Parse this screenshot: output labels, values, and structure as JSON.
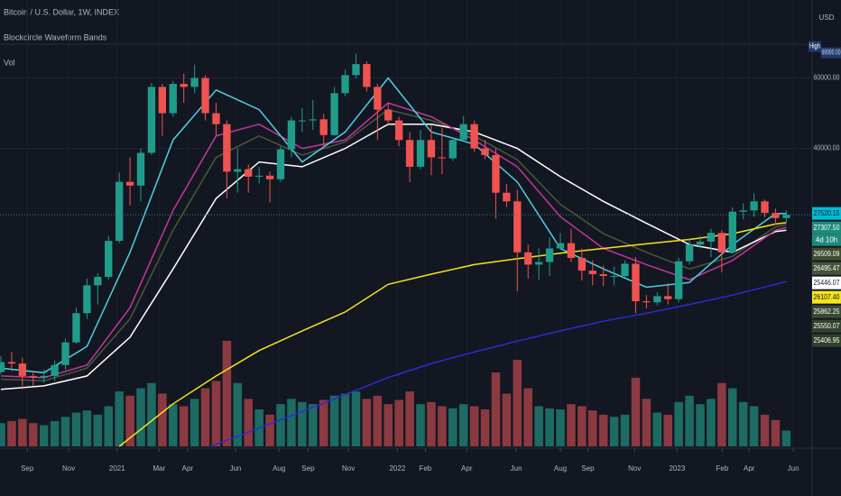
{
  "chart_data": {
    "type": "candlestick",
    "title": "Bitcoin / U.S. Dollar, 1W, INDEX",
    "subtitle": "Blockcircle Waveform Bands",
    "volume_title": "Vol",
    "currency": "USD",
    "up_color": "#1f9d8a",
    "down_color": "#ef5350",
    "volume_up_color": "#1d6b63",
    "volume_down_color": "#8a3a40",
    "log_scale": true,
    "xlim": [
      -0.17,
      150.8
    ],
    "ylim": [
      7200,
      94000
    ],
    "vlim": [
      0,
      105
    ],
    "yticks": [
      {
        "value": 60000,
        "label": "60000.00"
      },
      {
        "value": 40000,
        "label": "40000.00"
      }
    ],
    "xticks": [
      {
        "value": 4.9,
        "label": "Sep"
      },
      {
        "value": 12.6,
        "label": "Nov"
      },
      {
        "value": 21.6,
        "label": "2021"
      },
      {
        "value": 29.4,
        "label": "Mar"
      },
      {
        "value": 34.7,
        "label": "Apr"
      },
      {
        "value": 43.6,
        "label": "Jun"
      },
      {
        "value": 51.7,
        "label": "Aug"
      },
      {
        "value": 57.1,
        "label": "Sep"
      },
      {
        "value": 64.6,
        "label": "Nov"
      },
      {
        "value": 73.7,
        "label": "2022"
      },
      {
        "value": 78.9,
        "label": "Feb"
      },
      {
        "value": 86.6,
        "label": "Apr"
      },
      {
        "value": 95.8,
        "label": "Jun"
      },
      {
        "value": 104.0,
        "label": "Aug"
      },
      {
        "value": 109.1,
        "label": "Sep"
      },
      {
        "value": 117.8,
        "label": "Nov"
      },
      {
        "value": 125.7,
        "label": "2023"
      },
      {
        "value": 134.1,
        "label": "Feb"
      },
      {
        "value": 139.1,
        "label": "Apr"
      },
      {
        "value": 147.3,
        "label": "Jun"
      }
    ],
    "grid": true,
    "x": [
      0,
      2,
      4,
      6,
      8,
      10,
      12,
      14,
      16,
      18,
      20,
      22,
      24,
      26,
      28,
      30,
      32,
      34,
      36,
      38,
      40,
      42,
      44,
      46,
      48,
      50,
      52,
      54,
      56,
      58,
      60,
      62,
      64,
      66,
      68,
      70,
      72,
      74,
      76,
      78,
      80,
      82,
      84,
      86,
      88,
      90,
      92,
      94,
      96,
      98,
      100,
      102,
      104,
      106,
      108,
      110,
      112,
      114,
      116,
      118,
      120,
      122,
      124,
      126,
      128,
      130,
      132,
      134,
      136,
      138,
      140,
      142,
      144,
      146
    ],
    "open": [
      11050,
      11700,
      11600,
      10800,
      10700,
      10800,
      11500,
      13100,
      15500,
      18200,
      19100,
      23500,
      33000,
      32300,
      39000,
      57000,
      49000,
      58000,
      57000,
      60000,
      49000,
      46000,
      35000,
      35500,
      34000,
      34200,
      33500,
      39800,
      47000,
      47000,
      47300,
      43200,
      55000,
      61000,
      65000,
      57000,
      50000,
      47000,
      42000,
      36000,
      42000,
      38000,
      37800,
      42000,
      46000,
      40000,
      38500,
      31000,
      29500,
      22000,
      20500,
      20800,
      22500,
      23200,
      21300,
      19800,
      19400,
      19200,
      19200,
      20600,
      16600,
      16500,
      17100,
      16800,
      20900,
      23000,
      23400,
      24600,
      22000,
      27800,
      28000,
      29500,
      27600,
      26800
    ],
    "high": [
      12100,
      12400,
      12000,
      11100,
      11200,
      11800,
      13400,
      16000,
      18900,
      19500,
      24200,
      34800,
      38000,
      40000,
      58300,
      58000,
      59000,
      61500,
      64800,
      61000,
      52000,
      47000,
      40000,
      36500,
      36000,
      35000,
      40500,
      48000,
      50500,
      52900,
      48800,
      57000,
      63000,
      68990,
      66000,
      58000,
      52000,
      48000,
      44000,
      44500,
      45800,
      45000,
      42500,
      48200,
      47000,
      42000,
      40000,
      32600,
      31500,
      23000,
      22500,
      24000,
      24600,
      25200,
      22500,
      21000,
      20400,
      20300,
      21000,
      21400,
      17200,
      17500,
      18400,
      21300,
      23900,
      24200,
      25200,
      25000,
      28500,
      29200,
      30900,
      29800,
      28300,
      28000
    ],
    "low": [
      10900,
      11100,
      10000,
      10200,
      10400,
      10500,
      11200,
      13000,
      15000,
      16300,
      18800,
      23200,
      28800,
      29500,
      38500,
      43000,
      48000,
      52000,
      55000,
      47000,
      43000,
      30000,
      31000,
      31000,
      32700,
      29300,
      33000,
      38000,
      44000,
      44500,
      40000,
      43000,
      54000,
      60000,
      55500,
      42000,
      45500,
      40500,
      33000,
      35500,
      34300,
      34500,
      37200,
      41500,
      39200,
      37600,
      26700,
      28600,
      17600,
      18900,
      18800,
      19200,
      22400,
      20800,
      18700,
      18200,
      18100,
      18200,
      19000,
      15500,
      15900,
      16200,
      16300,
      16500,
      20500,
      22500,
      21400,
      19600,
      21900,
      26600,
      27000,
      26900,
      25800,
      26000
    ],
    "close": [
      11700,
      11600,
      10800,
      10700,
      10800,
      11500,
      13100,
      15500,
      18200,
      19100,
      23500,
      33000,
      32300,
      39000,
      57000,
      49000,
      58000,
      57000,
      60000,
      49000,
      46000,
      35000,
      35500,
      34000,
      34200,
      33500,
      39800,
      47000,
      47000,
      47300,
      43200,
      55000,
      61000,
      65000,
      57000,
      50000,
      47000,
      42000,
      36000,
      42000,
      38000,
      37800,
      42000,
      46000,
      40000,
      38500,
      31000,
      29500,
      22000,
      20500,
      20800,
      22500,
      23200,
      21300,
      19800,
      19400,
      19200,
      19200,
      20600,
      16600,
      16500,
      17100,
      16800,
      20900,
      23000,
      23400,
      24600,
      22000,
      27800,
      28000,
      29500,
      27600,
      26800,
      27300
    ],
    "volume": [
      22,
      24,
      26,
      22,
      20,
      24,
      28,
      32,
      34,
      30,
      38,
      52,
      48,
      55,
      60,
      50,
      40,
      38,
      45,
      55,
      62,
      100,
      60,
      45,
      35,
      30,
      40,
      45,
      42,
      40,
      44,
      48,
      50,
      52,
      45,
      48,
      40,
      44,
      52,
      40,
      42,
      38,
      36,
      40,
      38,
      35,
      70,
      50,
      82,
      55,
      38,
      36,
      35,
      40,
      38,
      34,
      30,
      28,
      30,
      65,
      45,
      32,
      30,
      42,
      48,
      40,
      45,
      60,
      55,
      42,
      38,
      30,
      25,
      15
    ],
    "overlays": [
      {
        "color": "#4a5a36",
        "x": [
          0,
          8,
          16,
          24,
          32,
          40,
          48,
          56,
          64,
          72,
          80,
          88,
          96,
          104,
          112,
          120,
          128,
          136,
          144,
          146
        ],
        "values": [
          10600,
          10500,
          11300,
          15000,
          25000,
          38000,
          43000,
          38500,
          41500,
          50000,
          47000,
          43000,
          37500,
          29000,
          24500,
          22000,
          20000,
          21500,
          25500,
          25800
        ]
      },
      {
        "color": "#ffffff",
        "x": [
          0,
          8,
          16,
          24,
          32,
          40,
          48,
          56,
          64,
          72,
          80,
          88,
          96,
          104,
          112,
          120,
          128,
          136,
          144,
          146
        ],
        "values": [
          10000,
          10200,
          10800,
          13500,
          20000,
          30000,
          37000,
          36000,
          40000,
          46000,
          46000,
          44000,
          40000,
          34000,
          29500,
          26000,
          23000,
          22000,
          24800,
          25000
        ]
      },
      {
        "color": "#c2379b",
        "x": [
          0,
          8,
          16,
          24,
          32,
          40,
          48,
          56,
          64,
          72,
          80,
          88,
          96,
          104,
          112,
          120,
          128,
          136,
          144,
          146
        ],
        "values": [
          10800,
          10700,
          11500,
          16000,
          28000,
          43000,
          46000,
          40000,
          42000,
          52000,
          48000,
          42000,
          36000,
          27000,
          22500,
          20500,
          18800,
          21000,
          25000,
          25400
        ]
      },
      {
        "color": "#4dd0e1",
        "x": [
          0,
          8,
          16,
          24,
          32,
          40,
          48,
          56,
          64,
          72,
          80,
          88,
          96,
          104,
          112,
          120,
          128,
          136,
          144,
          146
        ],
        "values": [
          11300,
          11000,
          12800,
          22000,
          42000,
          56000,
          50000,
          37000,
          44000,
          60000,
          44000,
          41000,
          33000,
          22500,
          20000,
          18000,
          18500,
          23000,
          27500,
          27520
        ]
      },
      {
        "color": "#f5e51b",
        "x": [
          22,
          32,
          40,
          48,
          56,
          64,
          72,
          80,
          88,
          96,
          104,
          112,
          120,
          128,
          136,
          144,
          146
        ],
        "values": [
          7200,
          9200,
          10800,
          12500,
          14000,
          15600,
          18300,
          19400,
          20500,
          21200,
          21900,
          22500,
          23100,
          23700,
          24500,
          25900,
          26100
        ]
      },
      {
        "color": "#2b2bd6",
        "x": [
          39,
          48,
          56,
          64,
          72,
          80,
          88,
          96,
          104,
          112,
          120,
          128,
          136,
          144,
          146
        ],
        "values": [
          7200,
          8000,
          8800,
          9700,
          10700,
          11600,
          12400,
          13200,
          14000,
          14800,
          15500,
          16300,
          17200,
          18300,
          18600
        ]
      }
    ],
    "high_tag": {
      "label": "High",
      "value": 68990,
      "value_label": "68990.00"
    },
    "price_tags": [
      {
        "value": 27520.15,
        "label": "27520.15",
        "color": "#00bcd4",
        "text_color": "#131722"
      },
      {
        "value": 27307.5,
        "label": "27307.50",
        "color": "#1f8a7c",
        "text_color": "#ffffff",
        "countdown": "4d 10h"
      },
      {
        "value": 26509.09,
        "label": "26509.09",
        "color": "#3f4d30",
        "text_color": "#ffffff"
      },
      {
        "value": 26495.47,
        "label": "26495.47",
        "color": "#46553a",
        "text_color": "#ffffff"
      },
      {
        "value": 25446.07,
        "label": "25446.07",
        "color": "#ffffff",
        "text_color": "#131722"
      },
      {
        "value": 26107.4,
        "label": "26107.40",
        "color": "#f5e51b",
        "text_color": "#131722"
      },
      {
        "value": 25862.25,
        "label": "25862.25",
        "color": "#3b4a33",
        "text_color": "#ffffff"
      },
      {
        "value": 25550.07,
        "label": "25550.07",
        "color": "#35432e",
        "text_color": "#ffffff"
      },
      {
        "value": 25406.95,
        "label": "25406.95",
        "color": "#30402b",
        "text_color": "#ffffff"
      }
    ]
  }
}
